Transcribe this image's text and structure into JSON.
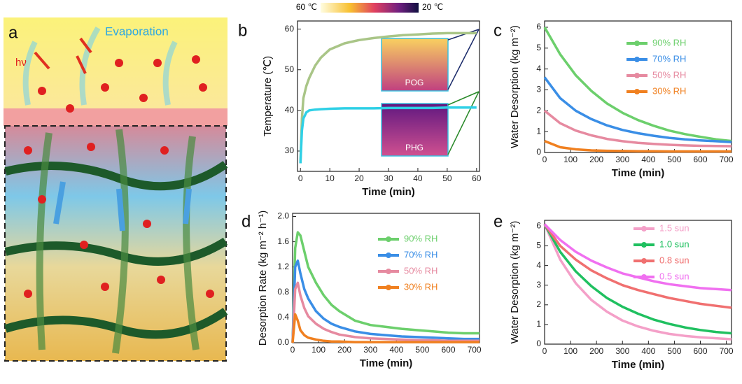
{
  "illustration": {
    "label": "a",
    "texts": [
      "hν",
      "Evaporation"
    ]
  },
  "chart_data": [
    {
      "type": "line",
      "panel": "b",
      "colorbar": {
        "labels": [
          "60 ℃",
          "20 ℃"
        ]
      },
      "xlabel": "Time (min)",
      "ylabel": "Temperature (℃)",
      "x": [
        0,
        0.5,
        1,
        2,
        3,
        5,
        7,
        10,
        15,
        20,
        25,
        30,
        35,
        40,
        45,
        50,
        55,
        60
      ],
      "xlim": [
        -1,
        61
      ],
      "xticks": [
        0,
        10,
        20,
        30,
        40,
        50,
        60
      ],
      "ylim": [
        25,
        62
      ],
      "yticks": [
        30,
        40,
        50,
        60
      ],
      "series": [
        {
          "name": "POG",
          "color": "#a9c587",
          "values": [
            27,
            38,
            43,
            46,
            48,
            51,
            53,
            55,
            56.5,
            57.3,
            57.8,
            58.2,
            58.5,
            58.7,
            58.9,
            59,
            59,
            59
          ]
        },
        {
          "name": "PHG",
          "color": "#2fd0e6",
          "values": [
            27,
            35,
            38,
            39.5,
            40,
            40.2,
            40.3,
            40.4,
            40.5,
            40.5,
            40.5,
            40.6,
            40.6,
            40.6,
            40.6,
            40.7,
            40.7,
            40.7
          ]
        }
      ]
    },
    {
      "type": "line",
      "panel": "c",
      "legend": "upper right",
      "xlabel": "Time (min)",
      "ylabel": "Water Desorption (kg m⁻²)",
      "x": [
        0,
        60,
        120,
        180,
        240,
        300,
        360,
        420,
        480,
        540,
        600,
        660,
        720
      ],
      "xlim": [
        0,
        720
      ],
      "xticks": [
        0,
        100,
        200,
        300,
        400,
        500,
        600,
        700
      ],
      "ylim": [
        0,
        6.3
      ],
      "yticks": [
        0,
        1,
        2,
        3,
        4,
        5,
        6
      ],
      "series": [
        {
          "name": "90% RH",
          "color": "#6ccf6c",
          "values": [
            6.0,
            4.7,
            3.7,
            2.95,
            2.35,
            1.9,
            1.55,
            1.28,
            1.05,
            0.88,
            0.75,
            0.63,
            0.55
          ]
        },
        {
          "name": "70% RH",
          "color": "#3a8ee6",
          "values": [
            3.6,
            2.6,
            2.0,
            1.6,
            1.3,
            1.08,
            0.92,
            0.8,
            0.7,
            0.63,
            0.58,
            0.54,
            0.5
          ]
        },
        {
          "name": "50% RH",
          "color": "#e68aa0",
          "values": [
            2.0,
            1.4,
            1.05,
            0.82,
            0.65,
            0.54,
            0.46,
            0.41,
            0.37,
            0.34,
            0.32,
            0.31,
            0.3
          ]
        },
        {
          "name": "30% RH",
          "color": "#f08020",
          "values": [
            0.55,
            0.25,
            0.15,
            0.1,
            0.08,
            0.07,
            0.06,
            0.06,
            0.05,
            0.05,
            0.05,
            0.05,
            0.05
          ]
        }
      ]
    },
    {
      "type": "line",
      "panel": "d",
      "legend": "upper right",
      "xlabel": "Time (min)",
      "ylabel": "Desorption Rate (kg m⁻² h⁻¹)",
      "x": [
        0,
        10,
        20,
        30,
        45,
        60,
        90,
        120,
        150,
        180,
        240,
        300,
        360,
        420,
        480,
        540,
        600,
        660,
        720
      ],
      "xlim": [
        0,
        720
      ],
      "xticks": [
        0,
        100,
        200,
        300,
        400,
        500,
        600,
        700
      ],
      "ylim": [
        0,
        2.05
      ],
      "yticks": [
        {
          "value": 0,
          "label": "0.0"
        },
        0.4,
        0.8,
        1.2,
        1.6,
        {
          "value": 2,
          "label": "2.0"
        }
      ],
      "series": [
        {
          "name": "90% RH",
          "color": "#6ccf6c",
          "values": [
            0,
            1.5,
            1.75,
            1.7,
            1.45,
            1.2,
            0.95,
            0.75,
            0.6,
            0.5,
            0.35,
            0.28,
            0.25,
            0.22,
            0.2,
            0.18,
            0.16,
            0.15,
            0.15
          ]
        },
        {
          "name": "70% RH",
          "color": "#3a8ee6",
          "values": [
            0,
            1.2,
            1.3,
            1.1,
            0.85,
            0.7,
            0.5,
            0.38,
            0.3,
            0.25,
            0.18,
            0.14,
            0.12,
            0.1,
            0.09,
            0.08,
            0.07,
            0.06,
            0.06
          ]
        },
        {
          "name": "50% RH",
          "color": "#e68aa0",
          "values": [
            0,
            0.85,
            0.95,
            0.75,
            0.55,
            0.42,
            0.3,
            0.22,
            0.17,
            0.13,
            0.09,
            0.07,
            0.06,
            0.05,
            0.04,
            0.04,
            0.03,
            0.03,
            0.03
          ]
        },
        {
          "name": "30% RH",
          "color": "#f08020",
          "values": [
            0,
            0.45,
            0.35,
            0.2,
            0.12,
            0.08,
            0.05,
            0.03,
            0.02,
            0.02,
            0.01,
            0.01,
            0.01,
            0.01,
            0.01,
            0.01,
            0.01,
            0.01,
            0.01
          ]
        }
      ]
    },
    {
      "type": "line",
      "panel": "e",
      "legend": "upper right",
      "xlabel": "Time (min)",
      "ylabel": "Water Desorption (kg m⁻²)",
      "x": [
        0,
        60,
        120,
        180,
        240,
        300,
        360,
        420,
        480,
        540,
        600,
        660,
        720
      ],
      "xlim": [
        0,
        720
      ],
      "xticks": [
        0,
        100,
        200,
        300,
        400,
        500,
        600,
        700
      ],
      "ylim": [
        0,
        6.3
      ],
      "yticks": [
        0,
        1,
        2,
        3,
        4,
        5,
        6
      ],
      "series": [
        {
          "name": "1.5 sun",
          "color": "#f4a0c8",
          "values": [
            6.1,
            4.3,
            3.1,
            2.25,
            1.65,
            1.2,
            0.9,
            0.68,
            0.52,
            0.42,
            0.35,
            0.3,
            0.25
          ]
        },
        {
          "name": "1.0 sun",
          "color": "#20c060",
          "values": [
            6.1,
            4.7,
            3.7,
            2.95,
            2.35,
            1.9,
            1.55,
            1.25,
            1.03,
            0.85,
            0.72,
            0.62,
            0.55
          ]
        },
        {
          "name": "0.8 sun",
          "color": "#f07070",
          "values": [
            6.1,
            5.0,
            4.3,
            3.75,
            3.35,
            3.0,
            2.75,
            2.55,
            2.35,
            2.2,
            2.05,
            1.95,
            1.85
          ]
        },
        {
          "name": "0.5 sun",
          "color": "#f070f0",
          "values": [
            6.1,
            5.3,
            4.7,
            4.25,
            3.9,
            3.6,
            3.4,
            3.2,
            3.05,
            2.95,
            2.85,
            2.8,
            2.75
          ]
        }
      ]
    }
  ]
}
